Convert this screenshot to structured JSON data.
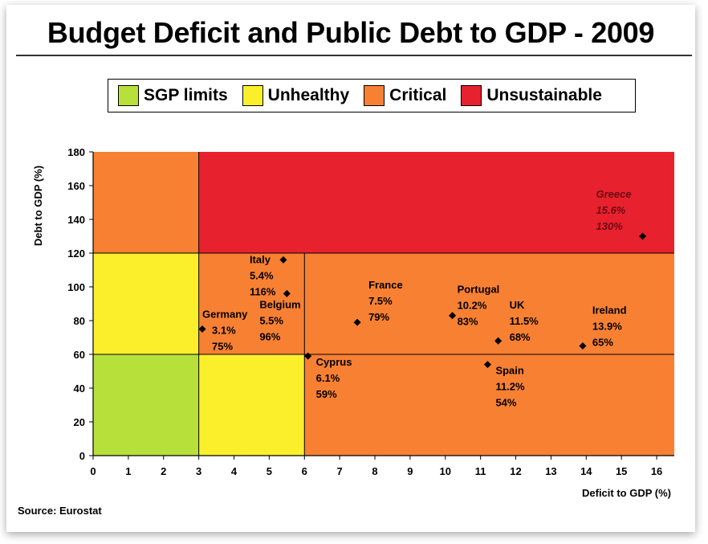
{
  "title": "Budget Deficit and Public Debt to GDP - 2009",
  "source": "Source: Eurostat",
  "legend": [
    {
      "label": "SGP limits",
      "color": "#b8e03a"
    },
    {
      "label": "Unhealthy",
      "color": "#fbef2c"
    },
    {
      "label": "Critical",
      "color": "#f88033"
    },
    {
      "label": "Unsustainable",
      "color": "#e8212e"
    }
  ],
  "chart_data": {
    "type": "scatter",
    "xlabel": "Deficit to GDP (%)",
    "ylabel": "Debt to GDP (%)",
    "xlim": [
      0,
      16.5
    ],
    "ylim": [
      0,
      180
    ],
    "x_ticks": [
      0,
      1,
      2,
      3,
      4,
      5,
      6,
      7,
      8,
      9,
      10,
      11,
      12,
      13,
      14,
      15,
      16
    ],
    "y_ticks": [
      0,
      20,
      40,
      60,
      80,
      100,
      120,
      140,
      160,
      180
    ],
    "zones": [
      {
        "x": [
          0,
          3
        ],
        "y": [
          0,
          60
        ],
        "category": "SGP limits"
      },
      {
        "x": [
          3,
          6
        ],
        "y": [
          0,
          60
        ],
        "category": "Unhealthy"
      },
      {
        "x": [
          0,
          3
        ],
        "y": [
          60,
          120
        ],
        "category": "Unhealthy"
      },
      {
        "x": [
          6,
          16.5
        ],
        "y": [
          0,
          60
        ],
        "category": "Critical"
      },
      {
        "x": [
          3,
          16.5
        ],
        "y": [
          60,
          120
        ],
        "category": "Critical"
      },
      {
        "x": [
          0,
          3
        ],
        "y": [
          120,
          180
        ],
        "category": "Critical"
      },
      {
        "x": [
          3,
          16.5
        ],
        "y": [
          120,
          180
        ],
        "category": "Unsustainable"
      }
    ],
    "points": [
      {
        "country": "Germany",
        "x": 3.1,
        "y": 75,
        "deficit_label": "3.1%",
        "debt_label": "75%"
      },
      {
        "country": "Italy",
        "x": 5.4,
        "y": 116,
        "deficit_label": "5.4%",
        "debt_label": "116%"
      },
      {
        "country": "Belgium",
        "x": 5.5,
        "y": 96,
        "deficit_label": "5.5%",
        "debt_label": "96%"
      },
      {
        "country": "Cyprus",
        "x": 6.1,
        "y": 59,
        "deficit_label": "6.1%",
        "debt_label": "59%"
      },
      {
        "country": "France",
        "x": 7.5,
        "y": 79,
        "deficit_label": "7.5%",
        "debt_label": "79%"
      },
      {
        "country": "Portugal",
        "x": 10.2,
        "y": 83,
        "deficit_label": "10.2%",
        "debt_label": "83%"
      },
      {
        "country": "Spain",
        "x": 11.2,
        "y": 54,
        "deficit_label": "11.2%",
        "debt_label": "54%"
      },
      {
        "country": "UK",
        "x": 11.5,
        "y": 68,
        "deficit_label": "11.5%",
        "debt_label": "68%"
      },
      {
        "country": "Ireland",
        "x": 13.9,
        "y": 65,
        "deficit_label": "13.9%",
        "debt_label": "65%"
      },
      {
        "country": "Greece",
        "x": 15.6,
        "y": 130,
        "deficit_label": "15.6%",
        "debt_label": "130%"
      }
    ]
  }
}
